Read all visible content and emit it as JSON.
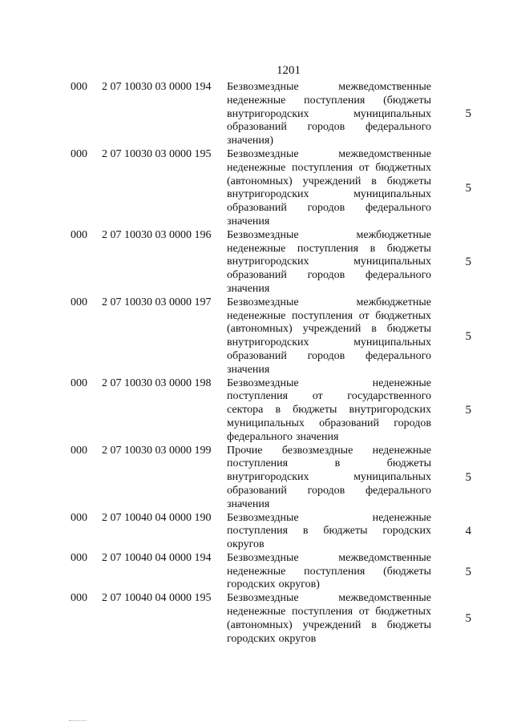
{
  "page_number": "1201",
  "rows": [
    {
      "admin": "000",
      "code": "2 07 10030 03 0000 194",
      "amount": "5",
      "lines": [
        "Безвозмездные межведомственные",
        "неденежные поступления (бюджеты",
        "внутригородских муниципальных",
        "образований городов федерального",
        "значения)"
      ]
    },
    {
      "admin": "000",
      "code": "2 07 10030 03 0000 195",
      "amount": "5",
      "lines": [
        "Безвозмездные межведомственные",
        "неденежные поступления от бюджетных",
        "(автономных) учреждений в бюджеты",
        "внутригородских муниципальных",
        "образований городов федерального",
        "значения"
      ]
    },
    {
      "admin": "000",
      "code": "2 07 10030 03 0000 196",
      "amount": "5",
      "lines": [
        "Безвозмездные межбюджетные",
        "неденежные поступления в бюджеты",
        "внутригородских муниципальных",
        "образований городов федерального",
        "значения"
      ]
    },
    {
      "admin": "000",
      "code": "2 07 10030 03 0000 197",
      "amount": "5",
      "lines": [
        "Безвозмездные межбюджетные",
        "неденежные поступления от бюджетных",
        "(автономных) учреждений в бюджеты",
        "внутригородских муниципальных",
        "образований городов федерального",
        "значения"
      ]
    },
    {
      "admin": "000",
      "code": "2 07 10030 03 0000 198",
      "amount": "5",
      "lines": [
        "Безвозмездные неденежные",
        "поступления от государственного",
        "сектора в бюджеты внутригородских",
        "муниципальных образований городов",
        "федерального значения"
      ]
    },
    {
      "admin": "000",
      "code": "2 07 10030 03 0000 199",
      "amount": "5",
      "lines": [
        "Прочие безвозмездные неденежные",
        "поступления в бюджеты",
        "внутригородских муниципальных",
        "образований городов федерального",
        "значения"
      ]
    },
    {
      "admin": "000",
      "code": "2 07 10040 04 0000 190",
      "amount": "4",
      "lines": [
        "Безвозмездные неденежные",
        "поступления в бюджеты городских",
        "округов"
      ]
    },
    {
      "admin": "000",
      "code": "2 07 10040 04 0000 194",
      "amount": "5",
      "lines": [
        "Безвозмездные межведомственные",
        "неденежные поступления (бюджеты",
        "городских округов)"
      ]
    },
    {
      "admin": "000",
      "code": "2 07 10040 04 0000 195",
      "amount": "5",
      "lines": [
        "Безвозмездные межведомственные",
        "неденежные поступления от бюджетных",
        "(автономных) учреждений в бюджеты",
        "городских округов"
      ]
    }
  ]
}
